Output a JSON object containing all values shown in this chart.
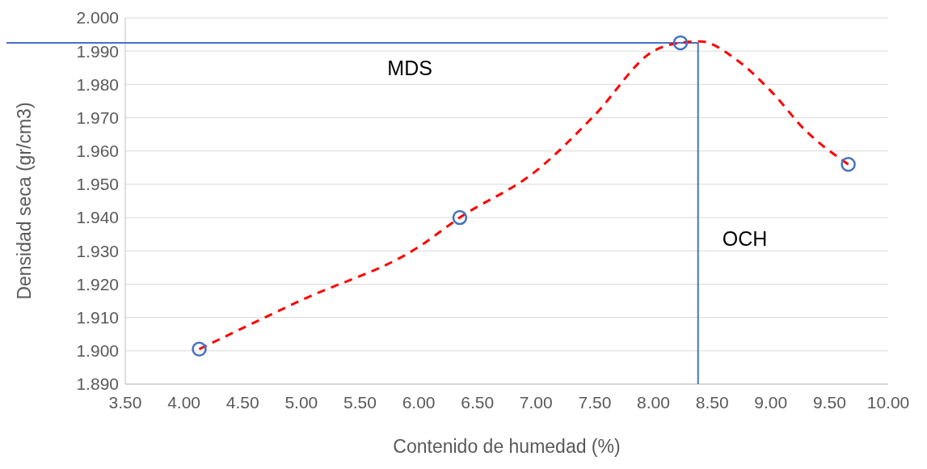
{
  "chart_data": {
    "type": "scatter",
    "xlabel": "Contenido de humedad (%)",
    "ylabel": "Densidad seca (gr/cm3)",
    "xlim": [
      3.5,
      10
    ],
    "xticks": [
      {
        "value": 3.5,
        "label": "3.50"
      },
      {
        "value": 4,
        "label": "4.00"
      },
      {
        "value": 4.5,
        "label": "4.50"
      },
      {
        "value": 5,
        "label": "5.00"
      },
      {
        "value": 5.5,
        "label": "5.50"
      },
      {
        "value": 6,
        "label": "6.00"
      },
      {
        "value": 6.5,
        "label": "6.50"
      },
      {
        "value": 7,
        "label": "7.00"
      },
      {
        "value": 7.5,
        "label": "7.50"
      },
      {
        "value": 8,
        "label": "8.00"
      },
      {
        "value": 8.5,
        "label": "8.50"
      },
      {
        "value": 9,
        "label": "9.00"
      },
      {
        "value": 9.5,
        "label": "9.50"
      },
      {
        "value": 10,
        "label": "10.00"
      }
    ],
    "ylim": [
      1.89,
      2.0
    ],
    "yticks": [
      {
        "value": 1.89,
        "label": "1.890"
      },
      {
        "value": 1.9,
        "label": "1.900"
      },
      {
        "value": 1.91,
        "label": "1.910"
      },
      {
        "value": 1.92,
        "label": "1.920"
      },
      {
        "value": 1.93,
        "label": "1.930"
      },
      {
        "value": 1.94,
        "label": "1.940"
      },
      {
        "value": 1.95,
        "label": "1.950"
      },
      {
        "value": 1.96,
        "label": "1.960"
      },
      {
        "value": 1.97,
        "label": "1.970"
      },
      {
        "value": 1.98,
        "label": "1.980"
      },
      {
        "value": 1.99,
        "label": "1.990"
      },
      {
        "value": 2.0,
        "label": "2.000"
      }
    ],
    "grid": "y",
    "series": [
      {
        "type": "line",
        "color": "#ff0000",
        "line_style": "dashed",
        "marker": "none",
        "x": [
          4.13,
          5.0,
          6.0,
          6.35,
          7.0,
          7.5,
          8.0,
          8.23,
          8.4,
          8.7,
          9.0,
          9.3,
          9.66
        ],
        "values": [
          1.9005,
          1.9152,
          1.9312,
          1.94,
          1.954,
          1.9708,
          1.99,
          1.9925,
          1.9929,
          1.9876,
          1.978,
          1.966,
          1.956
        ]
      },
      {
        "color": "#4472c4",
        "marker": "circle",
        "x": [
          4.13,
          6.35,
          8.23,
          9.66
        ],
        "values": [
          1.9005,
          1.94,
          1.9925,
          1.956
        ]
      }
    ],
    "ref_lines": [
      {
        "axis": "y",
        "value": 1.9925,
        "label": "MDS",
        "color": "#4472c4"
      },
      {
        "axis": "x",
        "value": 8.38,
        "label": "OCH",
        "color": "#4472c4"
      }
    ]
  }
}
